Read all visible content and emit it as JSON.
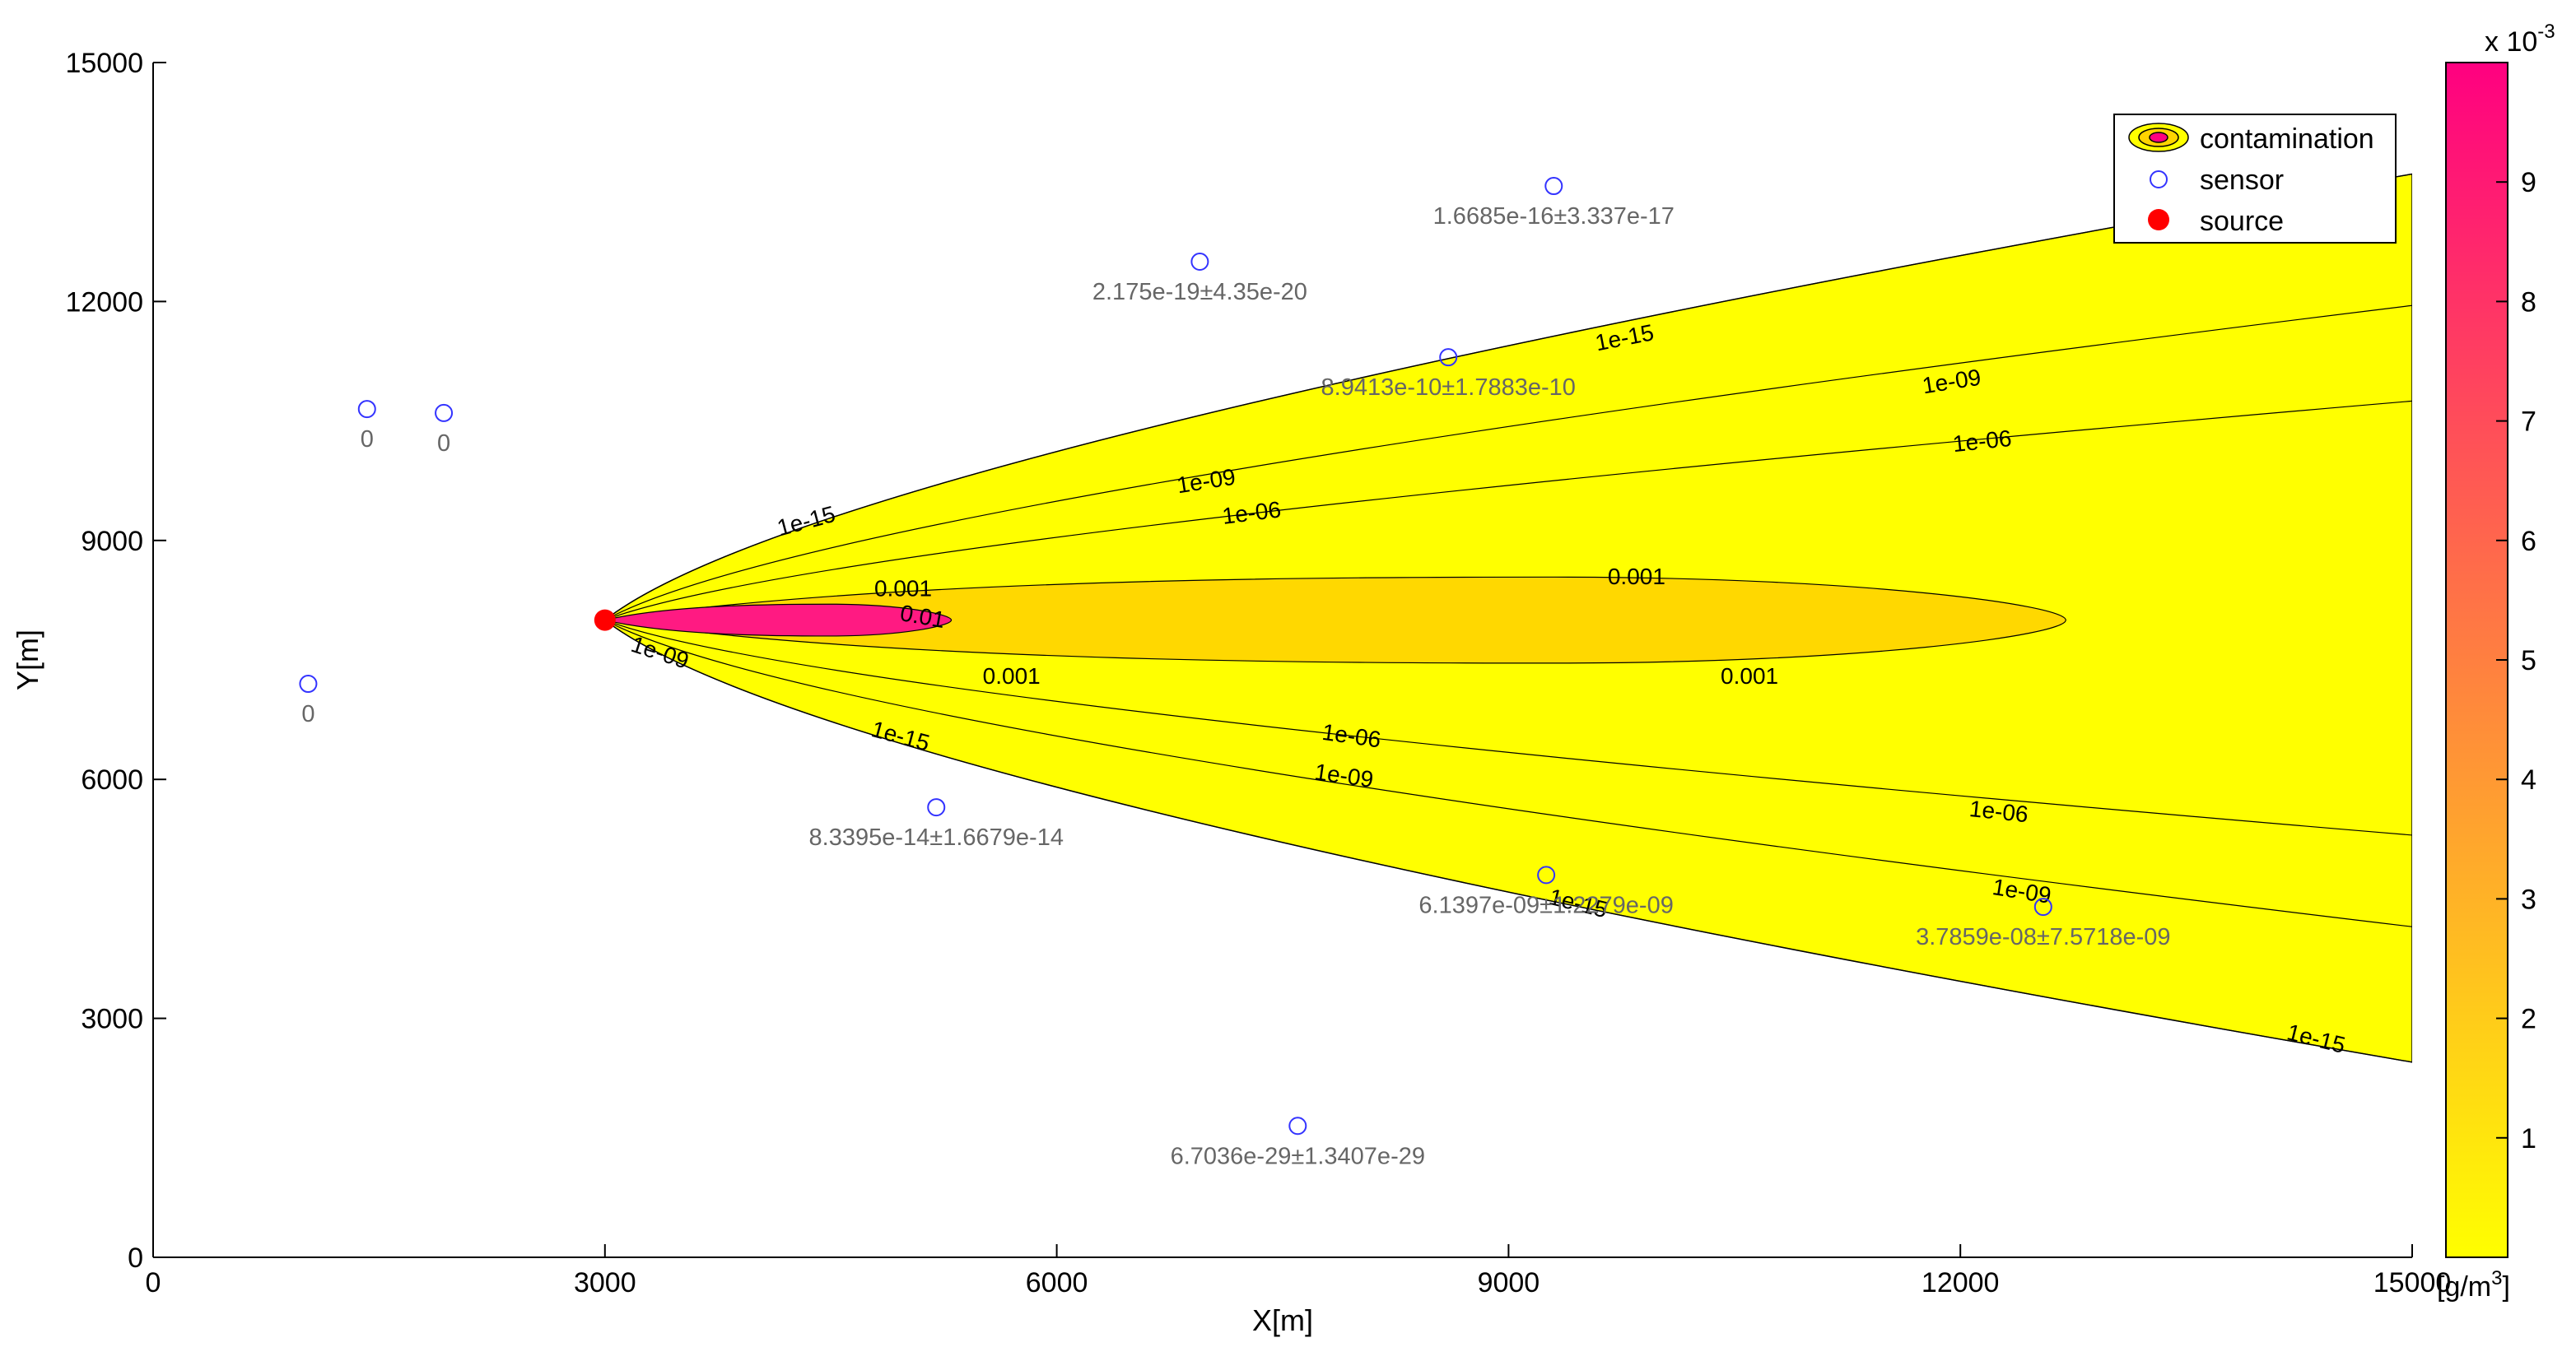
{
  "chart_data": {
    "type": "contour",
    "xlabel": "X[m]",
    "ylabel": "Y[m]",
    "xlim": [
      0,
      15000
    ],
    "ylim": [
      0,
      15000
    ],
    "x_ticks": [
      "0",
      "3000",
      "6000",
      "9000",
      "12000",
      "15000"
    ],
    "y_ticks": [
      "0",
      "3000",
      "6000",
      "9000",
      "12000",
      "15000"
    ],
    "legend": {
      "placement": "top-right",
      "entries": [
        {
          "label": "contamination",
          "marker": "filled-contour"
        },
        {
          "label": "sensor",
          "marker": "open-circle",
          "color": "#3333ff"
        },
        {
          "label": "source",
          "marker": "filled-circle",
          "color": "#ff0000"
        }
      ]
    },
    "colorbar": {
      "multiplier": "x 10",
      "exponent": "-3",
      "unit_prefix": "[g/m",
      "unit_exponent": "3",
      "unit_suffix": "]",
      "range": [
        0,
        10
      ],
      "ticks": [
        "1",
        "2",
        "3",
        "4",
        "5",
        "6",
        "7",
        "8",
        "9"
      ],
      "colors": [
        "#ffff00",
        "#ff0080"
      ]
    },
    "source": {
      "x": 3000,
      "y": 8000,
      "color": "#ff0000"
    },
    "plume": {
      "x_start": 3000,
      "x_end": 15000,
      "y_center": 8000,
      "upper_edge_at_end": 13600,
      "lower_edge_at_end": 2450
    },
    "contour_lines": [
      {
        "level": "1e-15",
        "upper_at_end": 13600,
        "lower_at_end": 2450
      },
      {
        "level": "1e-09",
        "upper_at_end": 11950,
        "lower_at_end": 4150
      },
      {
        "level": "1e-06",
        "upper_at_end": 10750,
        "lower_at_end": 5300
      }
    ],
    "contour_ellipses": [
      {
        "level": "0.001",
        "x_min": 3000,
        "x_max": 12700,
        "y_half_width": 540
      },
      {
        "level": "0.01",
        "x_min": 3000,
        "x_max": 5300,
        "y_half_width": 200
      }
    ],
    "contour_labels": [
      {
        "text": "1e-15",
        "x": 4350,
        "y": 9150,
        "angle": -15
      },
      {
        "text": "1e-09",
        "x": 7000,
        "y": 9650,
        "angle": -9
      },
      {
        "text": "1e-06",
        "x": 7300,
        "y": 9250,
        "angle": -7
      },
      {
        "text": "1e-15",
        "x": 9780,
        "y": 11450,
        "angle": -11
      },
      {
        "text": "1e-09",
        "x": 11950,
        "y": 10900,
        "angle": -9
      },
      {
        "text": "1e-06",
        "x": 12150,
        "y": 10150,
        "angle": -6
      },
      {
        "text": "0.001",
        "x": 4980,
        "y": 8300,
        "angle": 0
      },
      {
        "text": "0.01",
        "x": 5100,
        "y": 7950,
        "angle": 10
      },
      {
        "text": "0.001",
        "x": 9850,
        "y": 8450,
        "angle": 0
      },
      {
        "text": "1e-09",
        "x": 3350,
        "y": 7500,
        "angle": 18
      },
      {
        "text": "0.001",
        "x": 5700,
        "y": 7200,
        "angle": 0
      },
      {
        "text": "0.001",
        "x": 10600,
        "y": 7200,
        "angle": 0
      },
      {
        "text": "1e-15",
        "x": 4950,
        "y": 6450,
        "angle": 15
      },
      {
        "text": "1e-06",
        "x": 7950,
        "y": 6450,
        "angle": 8
      },
      {
        "text": "1e-09",
        "x": 7900,
        "y": 5950,
        "angle": 8
      },
      {
        "text": "1e-06",
        "x": 12250,
        "y": 5500,
        "angle": 6
      },
      {
        "text": "1e-15",
        "x": 9450,
        "y": 4350,
        "angle": 14
      },
      {
        "text": "1e-09",
        "x": 12400,
        "y": 4500,
        "angle": 9
      },
      {
        "text": "1e-15",
        "x": 14350,
        "y": 2650,
        "angle": 14
      }
    ],
    "sensors": [
      {
        "x": 1030,
        "y": 7200,
        "value": "0"
      },
      {
        "x": 1420,
        "y": 10650,
        "value": "0"
      },
      {
        "x": 1930,
        "y": 10600,
        "value": "0"
      },
      {
        "x": 6950,
        "y": 12500,
        "value": "2.175e-19±4.35e-20"
      },
      {
        "x": 9300,
        "y": 13450,
        "value": "1.6685e-16±3.337e-17"
      },
      {
        "x": 8600,
        "y": 11300,
        "value": "8.9413e-10±1.7883e-10"
      },
      {
        "x": 5200,
        "y": 5650,
        "value": "8.3395e-14±1.6679e-14"
      },
      {
        "x": 9250,
        "y": 4800,
        "value": "6.1397e-09±1.2279e-09"
      },
      {
        "x": 12550,
        "y": 4400,
        "value": "3.7859e-08±7.5718e-09"
      },
      {
        "x": 7600,
        "y": 1650,
        "value": "6.7036e-29±1.3407e-29"
      }
    ]
  }
}
